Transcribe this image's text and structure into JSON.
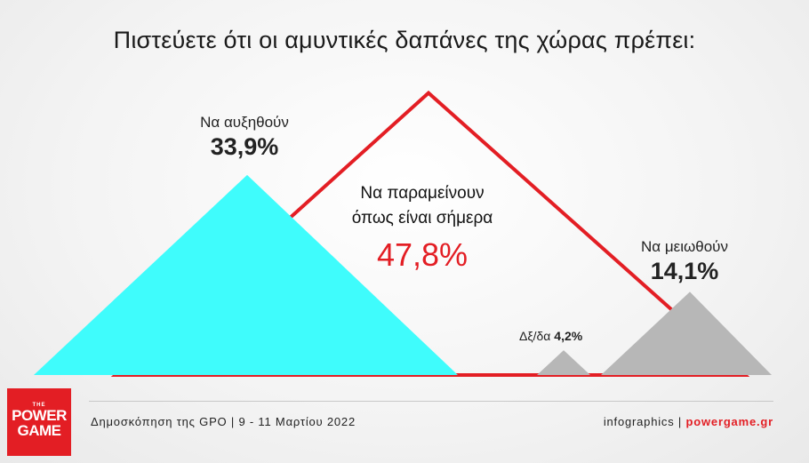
{
  "title": "Πιστεύετε ότι οι αμυντικές δαπάνες της χώρας πρέπει:",
  "chart_data": {
    "type": "area",
    "shape": "triangles",
    "categories": [
      "Να αυξηθούν",
      "Να παραμείνουν όπως είναι σήμερα",
      "Δξ/δα",
      "Να μειωθούν"
    ],
    "values": [
      33.9,
      47.8,
      4.2,
      14.1
    ],
    "labels": [
      "33,9%",
      "47,8%",
      "4,2%",
      "14,1%"
    ],
    "colors": [
      "#3ffcfc",
      "#e31e24",
      "#b7b7b7",
      "#b7b7b7"
    ],
    "center_label_line1": "Να παραμείνουν",
    "center_label_line2": "όπως είναι σήμερα",
    "ylim": [
      0,
      50
    ]
  },
  "footer": {
    "source": "Δημοσκόπηση της GPO | 9 - 11 Μαρτίου 2022",
    "credit_prefix": "infographics | ",
    "credit_site": "powergame.gr"
  },
  "logo": {
    "the": "THE",
    "word1": "POWER",
    "word2": "GAME"
  }
}
